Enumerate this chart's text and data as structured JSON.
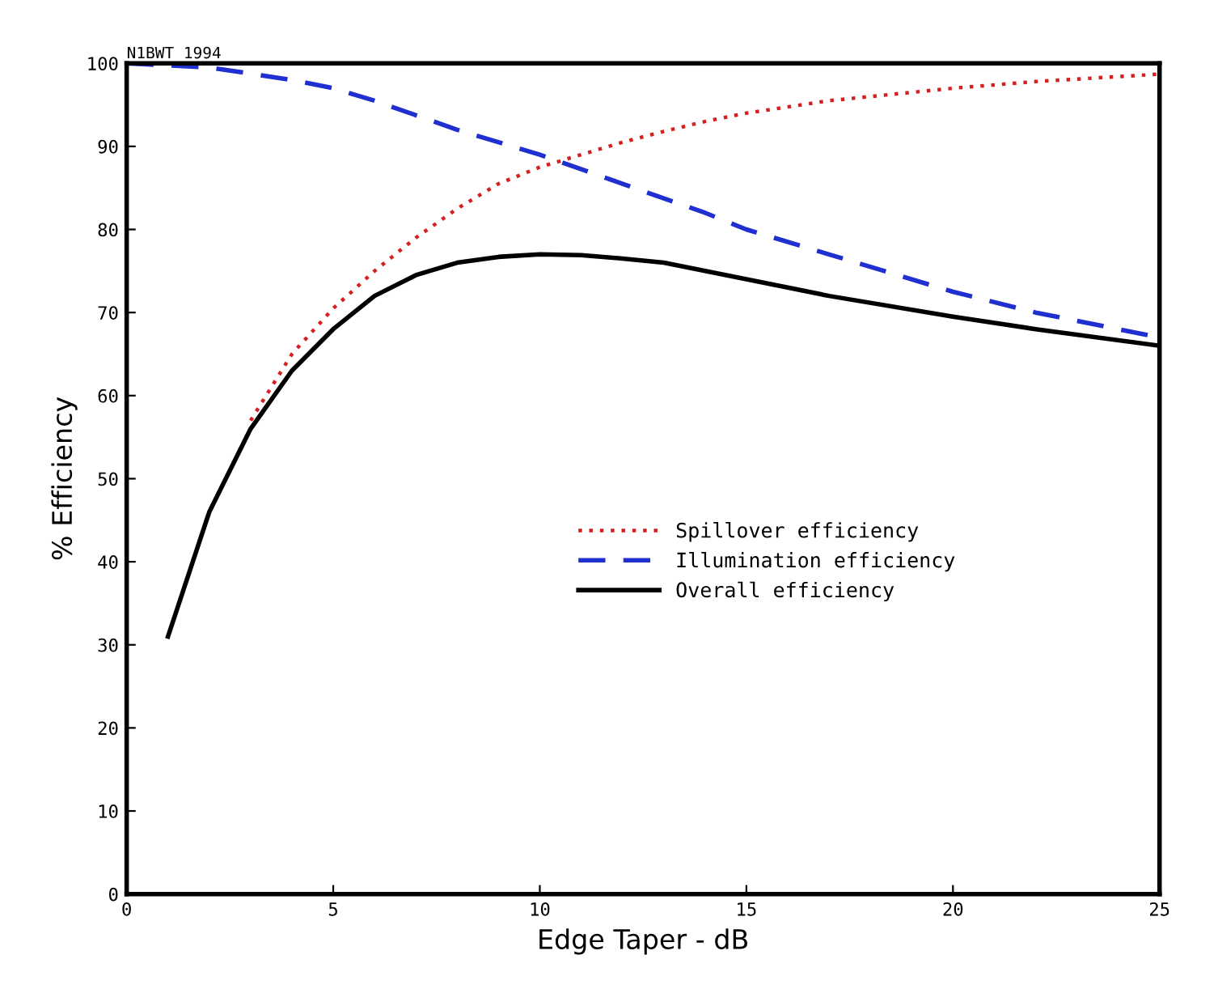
{
  "chart_data": {
    "type": "line",
    "xlabel": "Edge Taper - dB",
    "ylabel": "% Efficiency",
    "annotations": [
      "N1BWT 1994"
    ],
    "xlim": [
      0,
      25
    ],
    "ylim": [
      0,
      100
    ],
    "xticks": [
      0,
      5,
      10,
      15,
      20,
      25
    ],
    "yticks": [
      0,
      10,
      20,
      30,
      40,
      50,
      60,
      70,
      80,
      90,
      100
    ],
    "grid": false,
    "legend": "center right",
    "series": [
      {
        "name": "Spillover efficiency",
        "color": "#d62020",
        "line_style": "dotted",
        "x": [
          3,
          4,
          5,
          6,
          7,
          8,
          9,
          10,
          11,
          12,
          13,
          14,
          15,
          17,
          20,
          22,
          25
        ],
        "values": [
          57,
          65,
          70.5,
          75,
          79,
          82.5,
          85.5,
          87.5,
          89,
          90.5,
          91.8,
          93,
          94,
          95.5,
          97,
          97.8,
          98.7
        ]
      },
      {
        "name": "Illumination efficiency",
        "color": "#1f2fd0",
        "line_style": "dashed",
        "x": [
          0,
          2,
          4,
          5,
          6,
          8,
          10,
          12,
          14,
          15,
          17,
          20,
          22,
          25
        ],
        "values": [
          100,
          99.5,
          98,
          97,
          95.5,
          92,
          89,
          85.5,
          82,
          80,
          77,
          72.5,
          70,
          67
        ]
      },
      {
        "name": "Overall efficiency",
        "color": "#000000",
        "line_style": "solid",
        "x": [
          1,
          2,
          3,
          4,
          5,
          6,
          7,
          8,
          9,
          10,
          11,
          12,
          13,
          14,
          15,
          17,
          20,
          22,
          25
        ],
        "values": [
          31,
          46,
          56,
          63,
          68,
          72,
          74.5,
          76,
          76.7,
          77,
          76.9,
          76.5,
          76,
          75,
          74,
          72,
          69.5,
          68,
          66
        ]
      }
    ]
  }
}
